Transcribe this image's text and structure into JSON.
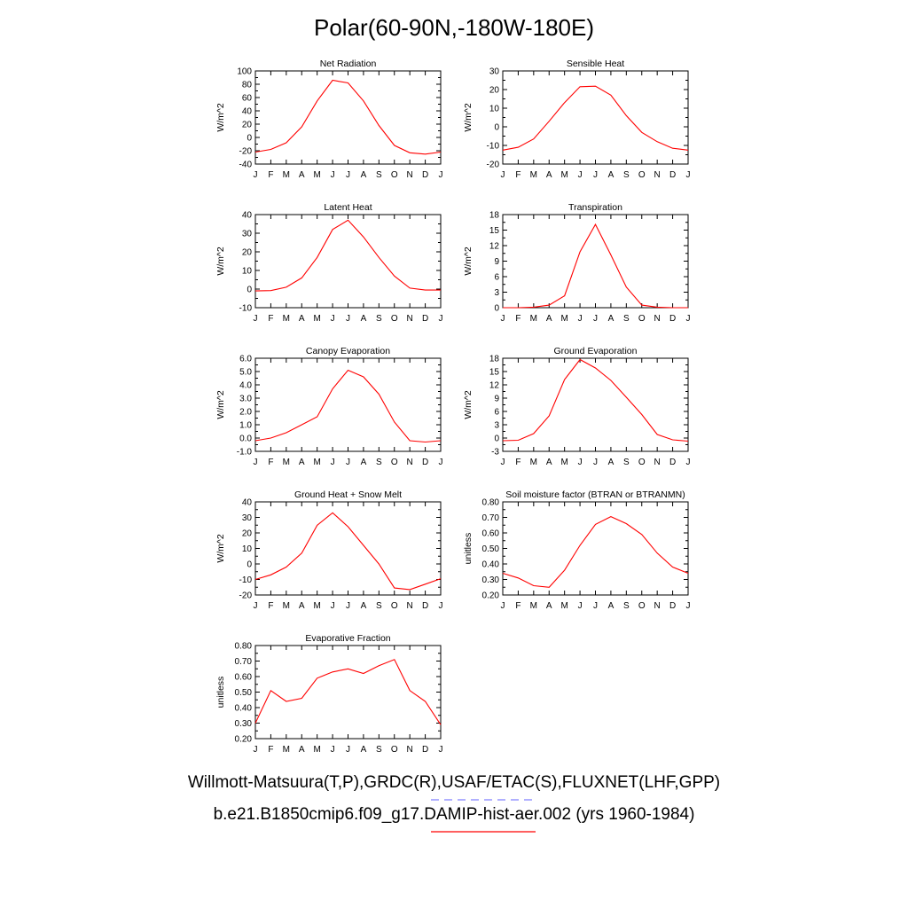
{
  "title": "Polar(60-90N,-180W-180E)",
  "legend": [
    {
      "label": "Willmott-Matsuura(T,P),GRDC(R),USAF/ETAC(S),FLUXNET(LHF,GPP)",
      "color": "#8080ff",
      "style": "dashed"
    },
    {
      "label": "b.e21.B1850cmip6.f09_g17.DAMIP-hist-aer.002 (yrs 1960-1984)",
      "color": "#ff0000",
      "style": "solid"
    }
  ],
  "chart_data": [
    {
      "type": "line",
      "title": "Net Radiation",
      "ylabel": "W/m^2",
      "ylim": [
        -40,
        100
      ],
      "yticks": [
        "-40",
        "-20",
        "0",
        "20",
        "40",
        "60",
        "80",
        "100"
      ],
      "categories": [
        "J",
        "F",
        "M",
        "A",
        "M",
        "J",
        "J",
        "A",
        "S",
        "O",
        "N",
        "D",
        "J"
      ],
      "series": [
        {
          "values": [
            -22,
            -18,
            -8,
            16,
            55,
            86,
            82,
            55,
            18,
            -12,
            -23,
            -25,
            -22
          ],
          "color": "#ff0000"
        }
      ]
    },
    {
      "type": "line",
      "title": "Sensible Heat",
      "ylabel": "W/m^2",
      "ylim": [
        -20,
        30
      ],
      "yticks": [
        "-20",
        "-10",
        "0",
        "10",
        "20",
        "30"
      ],
      "categories": [
        "J",
        "F",
        "M",
        "A",
        "M",
        "J",
        "J",
        "A",
        "S",
        "O",
        "N",
        "D",
        "J"
      ],
      "series": [
        {
          "values": [
            -12.5,
            -11,
            -6.5,
            3,
            13,
            21.5,
            21.8,
            17,
            6,
            -3,
            -8,
            -11.5,
            -12.5
          ],
          "color": "#ff0000"
        }
      ]
    },
    {
      "type": "line",
      "title": "Latent Heat",
      "ylabel": "W/m^2",
      "ylim": [
        -10,
        40
      ],
      "yticks": [
        "-10",
        "0",
        "10",
        "20",
        "30",
        "40"
      ],
      "categories": [
        "J",
        "F",
        "M",
        "A",
        "M",
        "J",
        "J",
        "A",
        "S",
        "O",
        "N",
        "D",
        "J"
      ],
      "series": [
        {
          "values": [
            -1,
            -0.8,
            1,
            6,
            17,
            32,
            37,
            28,
            17,
            7,
            0.5,
            -0.5,
            -0.5
          ],
          "color": "#ff0000"
        }
      ]
    },
    {
      "type": "line",
      "title": "Transpiration",
      "ylabel": "W/m^2",
      "ylim": [
        0,
        18
      ],
      "yticks": [
        "0",
        "3",
        "6",
        "9",
        "12",
        "15",
        "18"
      ],
      "categories": [
        "J",
        "F",
        "M",
        "A",
        "M",
        "J",
        "J",
        "A",
        "S",
        "O",
        "N",
        "D",
        "J"
      ],
      "series": [
        {
          "values": [
            0,
            0,
            0.1,
            0.5,
            2.3,
            10.8,
            16.1,
            10.2,
            4,
            0.5,
            0.1,
            0,
            0
          ],
          "color": "#ff0000"
        }
      ]
    },
    {
      "type": "line",
      "title": "Canopy Evaporation",
      "ylabel": "W/m^2",
      "ylim": [
        -1.0,
        6.0
      ],
      "yticks": [
        "-1.0",
        "0.0",
        "1.0",
        "2.0",
        "3.0",
        "4.0",
        "5.0",
        "6.0"
      ],
      "categories": [
        "J",
        "F",
        "M",
        "A",
        "M",
        "J",
        "J",
        "A",
        "S",
        "O",
        "N",
        "D",
        "J"
      ],
      "series": [
        {
          "values": [
            -0.2,
            0,
            0.4,
            1,
            1.6,
            3.7,
            5.1,
            4.6,
            3.3,
            1.2,
            -0.2,
            -0.3,
            -0.2
          ],
          "color": "#ff0000"
        }
      ]
    },
    {
      "type": "line",
      "title": "Ground Evaporation",
      "ylabel": "W/m^2",
      "ylim": [
        -3,
        18
      ],
      "yticks": [
        "-3",
        "0",
        "3",
        "6",
        "9",
        "12",
        "15",
        "18"
      ],
      "categories": [
        "J",
        "F",
        "M",
        "A",
        "M",
        "J",
        "J",
        "A",
        "S",
        "O",
        "N",
        "D",
        "J"
      ],
      "series": [
        {
          "values": [
            -0.6,
            -0.5,
            1,
            5,
            13.2,
            17.7,
            15.8,
            13,
            9.2,
            5.3,
            0.8,
            -0.4,
            -0.7
          ],
          "color": "#ff0000"
        }
      ]
    },
    {
      "type": "line",
      "title": "Ground Heat + Snow Melt",
      "ylabel": "W/m^2",
      "ylim": [
        -20,
        40
      ],
      "yticks": [
        "-20",
        "-10",
        "0",
        "10",
        "20",
        "30",
        "40"
      ],
      "categories": [
        "J",
        "F",
        "M",
        "A",
        "M",
        "J",
        "J",
        "A",
        "S",
        "O",
        "N",
        "D",
        "J"
      ],
      "series": [
        {
          "values": [
            -10,
            -7,
            -2,
            7,
            25,
            33,
            24,
            12,
            0,
            -15.5,
            -16.5,
            -13,
            -9.5
          ],
          "color": "#ff0000"
        }
      ]
    },
    {
      "type": "line",
      "title": "Soil moisture factor (BTRAN or BTRANMN)",
      "ylabel": "unitless",
      "ylim": [
        0.2,
        0.8
      ],
      "yticks": [
        "0.20",
        "0.30",
        "0.40",
        "0.50",
        "0.60",
        "0.70",
        "0.80"
      ],
      "categories": [
        "J",
        "F",
        "M",
        "A",
        "M",
        "J",
        "J",
        "A",
        "S",
        "O",
        "N",
        "D",
        "J"
      ],
      "series": [
        {
          "values": [
            0.34,
            0.31,
            0.26,
            0.25,
            0.36,
            0.52,
            0.655,
            0.705,
            0.66,
            0.59,
            0.47,
            0.38,
            0.34
          ],
          "color": "#ff0000"
        }
      ]
    },
    {
      "type": "line",
      "title": "Evaporative Fraction",
      "ylabel": "unitless",
      "ylim": [
        0.2,
        0.8
      ],
      "yticks": [
        "0.20",
        "0.30",
        "0.40",
        "0.50",
        "0.60",
        "0.70",
        "0.80"
      ],
      "categories": [
        "J",
        "F",
        "M",
        "A",
        "M",
        "J",
        "J",
        "A",
        "S",
        "O",
        "N",
        "D",
        "J"
      ],
      "series": [
        {
          "values": [
            0.3,
            0.51,
            0.44,
            0.46,
            0.59,
            0.63,
            0.65,
            0.62,
            0.67,
            0.71,
            0.51,
            0.44,
            0.29
          ],
          "color": "#ff0000"
        }
      ]
    }
  ]
}
